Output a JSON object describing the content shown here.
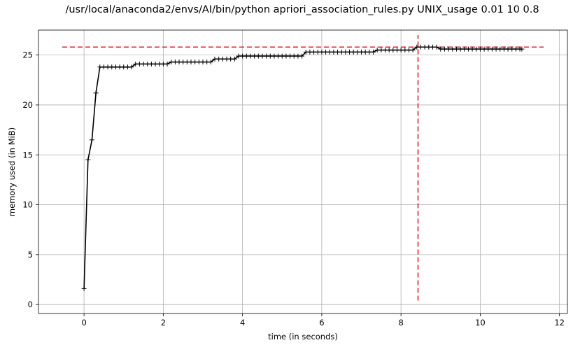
{
  "chart_data": {
    "type": "line",
    "title": "/usr/local/anaconda2/envs/AI/bin/python apriori_association_rules.py UNIX_usage 0.01 10 0.8",
    "xlabel": "time (in seconds)",
    "ylabel": "memory used (in MiB)",
    "xlim": [
      -1.15,
      12.2
    ],
    "ylim": [
      -0.9,
      27.5
    ],
    "xticks": [
      0,
      2,
      4,
      6,
      8,
      10,
      12
    ],
    "yticks": [
      0,
      5,
      10,
      15,
      20,
      25
    ],
    "grid": true,
    "series": [
      {
        "color": "#000000",
        "marker": "+",
        "x": [
          0.0,
          0.1,
          0.2,
          0.3,
          0.4,
          0.5,
          0.6,
          0.7,
          0.8,
          0.9,
          1.0,
          1.1,
          1.2,
          1.3,
          1.4,
          1.5,
          1.6,
          1.7,
          1.8,
          1.9,
          2.0,
          2.1,
          2.2,
          2.3,
          2.4,
          2.5,
          2.6,
          2.7,
          2.8,
          2.9,
          3.0,
          3.1,
          3.2,
          3.3,
          3.4,
          3.5,
          3.6,
          3.7,
          3.8,
          3.9,
          4.0,
          4.1,
          4.2,
          4.3,
          4.4,
          4.5,
          4.6,
          4.7,
          4.8,
          4.9,
          5.0,
          5.1,
          5.2,
          5.3,
          5.4,
          5.5,
          5.6,
          5.7,
          5.8,
          5.9,
          6.0,
          6.1,
          6.2,
          6.3,
          6.4,
          6.5,
          6.6,
          6.7,
          6.8,
          6.9,
          7.0,
          7.1,
          7.2,
          7.3,
          7.4,
          7.5,
          7.6,
          7.7,
          7.8,
          7.9,
          8.0,
          8.1,
          8.2,
          8.3,
          8.4,
          8.5,
          8.6,
          8.7,
          8.8,
          8.9,
          9.0,
          9.1,
          9.2,
          9.3,
          9.4,
          9.5,
          9.6,
          9.7,
          9.8,
          9.9,
          10.0,
          10.1,
          10.2,
          10.3,
          10.4,
          10.5,
          10.6,
          10.7,
          10.8,
          10.9,
          11.0,
          11.05
        ],
        "y": [
          1.6,
          14.5,
          16.5,
          21.2,
          23.8,
          23.8,
          23.8,
          23.8,
          23.8,
          23.8,
          23.8,
          23.8,
          23.8,
          24.1,
          24.1,
          24.1,
          24.1,
          24.1,
          24.1,
          24.1,
          24.1,
          24.1,
          24.3,
          24.3,
          24.3,
          24.3,
          24.3,
          24.3,
          24.3,
          24.3,
          24.3,
          24.3,
          24.3,
          24.6,
          24.6,
          24.6,
          24.6,
          24.6,
          24.6,
          24.9,
          24.9,
          24.9,
          24.9,
          24.9,
          24.9,
          24.9,
          24.9,
          24.9,
          24.9,
          24.9,
          24.9,
          24.9,
          24.9,
          24.9,
          24.9,
          24.9,
          25.3,
          25.3,
          25.3,
          25.3,
          25.3,
          25.3,
          25.3,
          25.3,
          25.3,
          25.3,
          25.3,
          25.3,
          25.3,
          25.3,
          25.3,
          25.3,
          25.3,
          25.3,
          25.5,
          25.5,
          25.5,
          25.5,
          25.5,
          25.5,
          25.5,
          25.5,
          25.5,
          25.5,
          25.8,
          25.8,
          25.8,
          25.8,
          25.8,
          25.8,
          25.6,
          25.6,
          25.6,
          25.6,
          25.6,
          25.6,
          25.6,
          25.6,
          25.6,
          25.6,
          25.6,
          25.6,
          25.6,
          25.6,
          25.6,
          25.6,
          25.6,
          25.6,
          25.6,
          25.6,
          25.6,
          25.6
        ]
      }
    ],
    "reference_lines": [
      {
        "orientation": "horizontal",
        "y": 25.8,
        "x_range": [
          -0.55,
          11.6
        ],
        "color": "#d62728",
        "style": "dashed"
      },
      {
        "orientation": "vertical",
        "x": 8.43,
        "y_range": [
          0.4,
          27.0
        ],
        "color": "#d62728",
        "style": "dashed"
      }
    ]
  }
}
